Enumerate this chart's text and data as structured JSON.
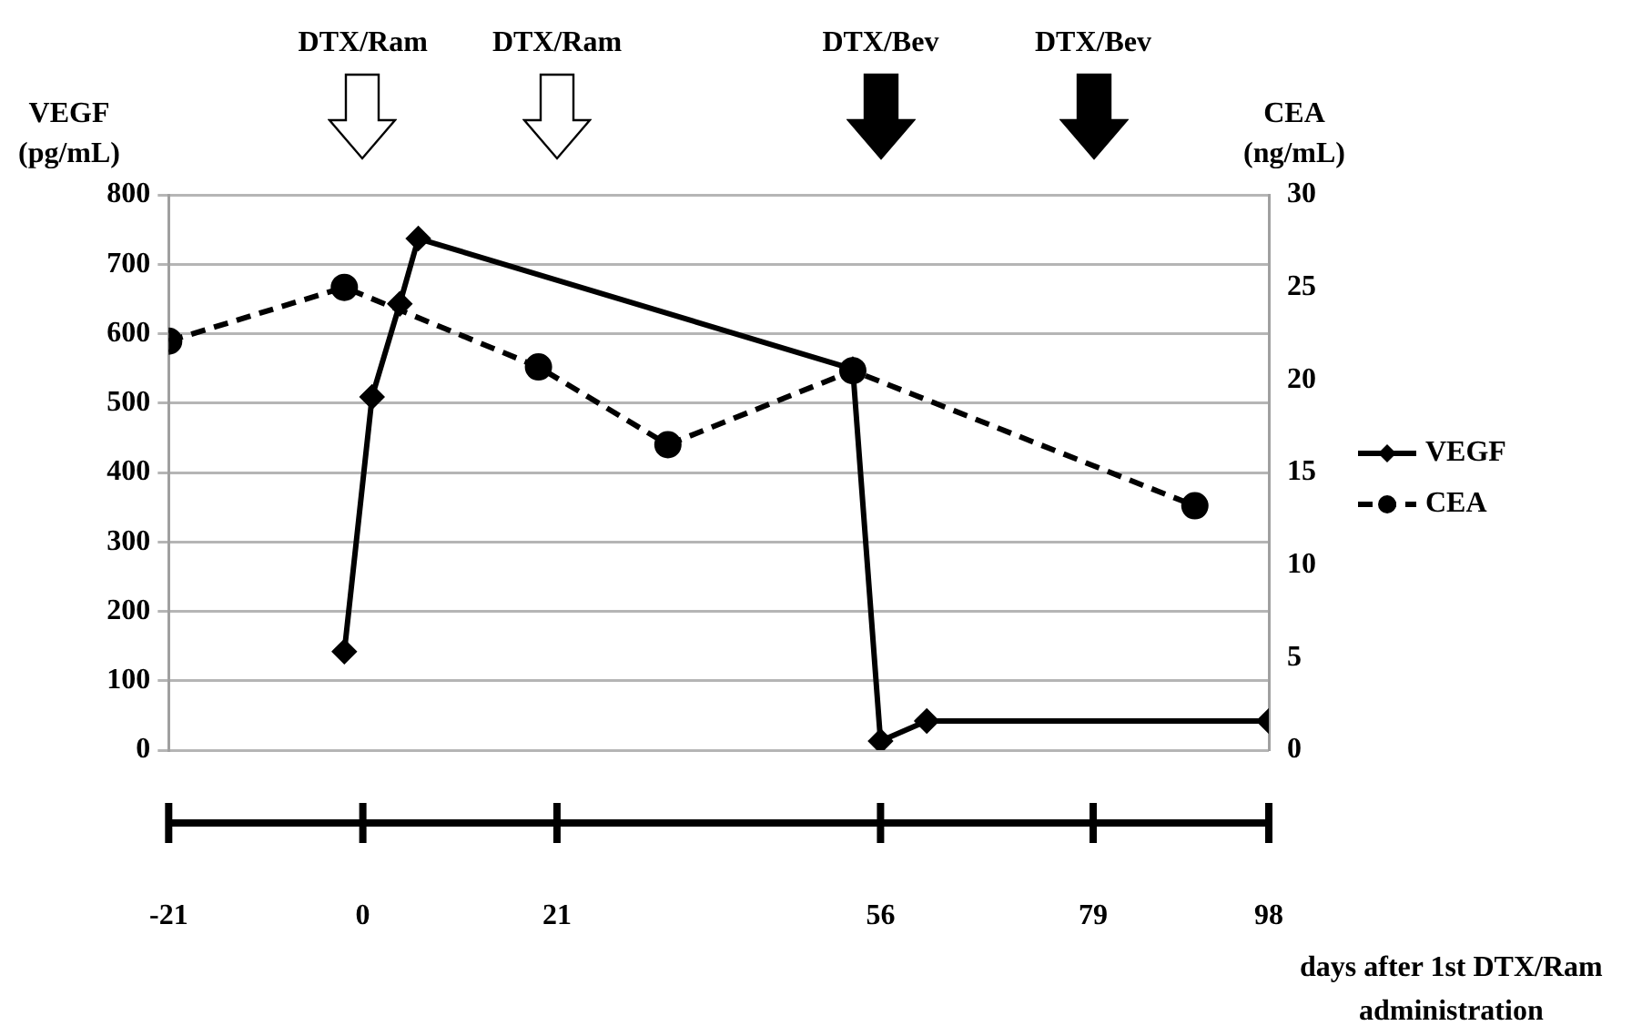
{
  "chart_data": {
    "type": "line",
    "ylabel": "VEGF\n(pg/mL)",
    "y2label": "CEA\n(ng/mL)",
    "xlabel": "days after 1st DTX/Ram\nadministration",
    "xlim": [
      -21,
      98
    ],
    "xticks": [
      -21,
      0,
      21,
      56,
      79,
      98
    ],
    "ylim": [
      0,
      800
    ],
    "yticks": [
      0,
      100,
      200,
      300,
      400,
      500,
      600,
      700,
      800
    ],
    "y2lim": [
      0,
      30
    ],
    "y2ticks": [
      0,
      5,
      10,
      15,
      20,
      25,
      30
    ],
    "grid": "y",
    "legend": "right",
    "annotations": [
      "DTX/Ram",
      "DTX/Ram",
      "DTX/Bev",
      "DTX/Bev"
    ],
    "series": [
      {
        "name": "VEGF",
        "color": "#000000",
        "marker": "diamond",
        "line_style": "solid",
        "x": [
          -2,
          1,
          4,
          6,
          53,
          56,
          61,
          98
        ],
        "values": [
          142,
          509,
          643,
          737,
          549,
          13,
          42,
          42
        ]
      },
      {
        "name": "CEA",
        "color": "#000000",
        "marker": "circle",
        "line_style": "dashed",
        "axis": "y2",
        "x": [
          -21,
          -2,
          19,
          33,
          53,
          90
        ],
        "values": [
          22.1,
          25.0,
          20.7,
          16.5,
          20.5,
          13.2
        ]
      }
    ]
  }
}
